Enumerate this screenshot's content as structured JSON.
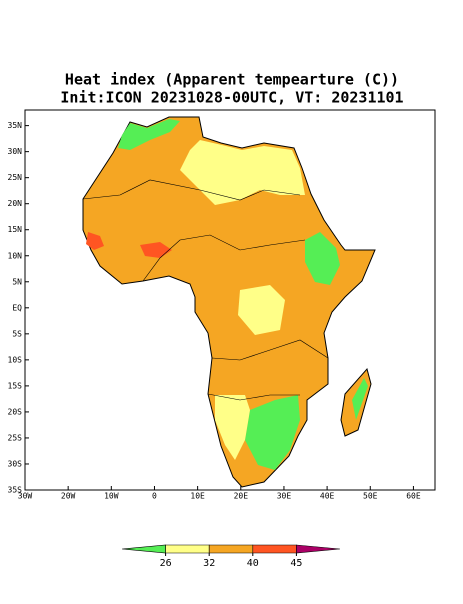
{
  "map": {
    "title": "Heat index (Apparent tempearture (C))",
    "subtitle": "Init:ICON 20231028-00UTC, VT: 20231101",
    "xlim": [
      -30,
      65
    ],
    "ylim": [
      -35,
      38
    ],
    "xticks": [
      {
        "value": -30,
        "label": "30W"
      },
      {
        "value": -20,
        "label": "20W"
      },
      {
        "value": -10,
        "label": "10W"
      },
      0,
      {
        "value": 10,
        "label": "10E"
      },
      {
        "value": 20,
        "label": "20E"
      },
      {
        "value": 30,
        "label": "30E"
      },
      {
        "value": 40,
        "label": "40E"
      },
      {
        "value": 50,
        "label": "50E"
      },
      {
        "value": 60,
        "label": "60E"
      }
    ],
    "yticks": [
      {
        "value": 35,
        "label": "35N"
      },
      {
        "value": 30,
        "label": "30N"
      },
      {
        "value": 25,
        "label": "25N"
      },
      {
        "value": 20,
        "label": "20N"
      },
      {
        "value": 15,
        "label": "15N"
      },
      {
        "value": 10,
        "label": "10N"
      },
      {
        "value": 5,
        "label": "5N"
      },
      {
        "value": 0,
        "label": "EQ"
      },
      {
        "value": -5,
        "label": "5S"
      },
      {
        "value": -10,
        "label": "10S"
      },
      {
        "value": -15,
        "label": "15S"
      },
      {
        "value": -20,
        "label": "20S"
      },
      {
        "value": -25,
        "label": "25S"
      },
      {
        "value": -30,
        "label": "30S"
      },
      {
        "value": -35,
        "label": "35S"
      }
    ],
    "colorbar": {
      "ticks": [
        26,
        32,
        40,
        45
      ],
      "colors": [
        "#55ee55",
        "#ffff88",
        "#f5a623",
        "#ff5522",
        "#aa0066"
      ]
    }
  }
}
